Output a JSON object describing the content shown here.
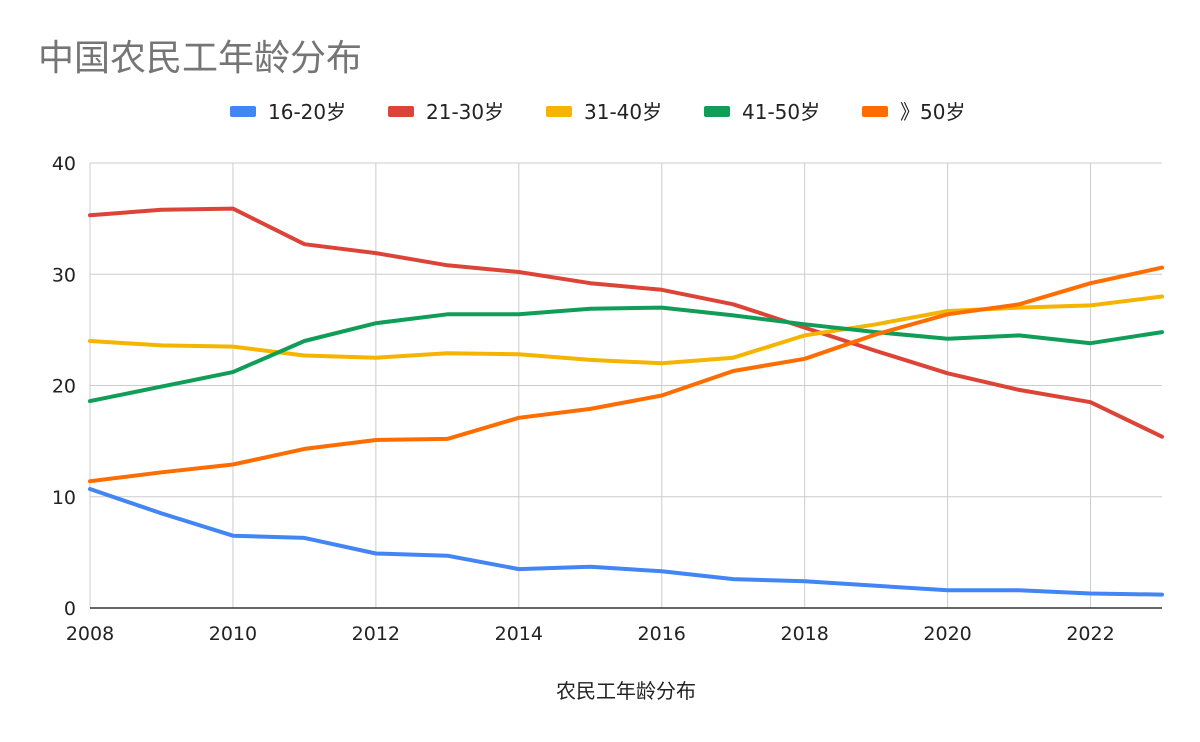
{
  "chart_data": {
    "type": "line",
    "title": "中国农民工年龄分布",
    "xlabel": "农民工年龄分布",
    "ylabel": "",
    "xlim": [
      2008,
      2023
    ],
    "ylim": [
      0,
      40
    ],
    "grid": true,
    "legend_position": "top",
    "x_ticks": [
      "2008",
      "2010",
      "2012",
      "2014",
      "2016",
      "2018",
      "2020",
      "2022"
    ],
    "y_ticks": [
      "0",
      "10",
      "20",
      "30",
      "40"
    ],
    "x": [
      2008,
      2009,
      2010,
      2011,
      2012,
      2013,
      2014,
      2015,
      2016,
      2017,
      2018,
      2019,
      2020,
      2021,
      2022,
      2023
    ],
    "series": [
      {
        "name": "16-20岁",
        "color": "#4285F4",
        "values": [
          10.7,
          8.5,
          6.5,
          6.3,
          4.9,
          4.7,
          3.5,
          3.7,
          3.3,
          2.6,
          2.4,
          2.0,
          1.6,
          1.6,
          1.3,
          1.2
        ]
      },
      {
        "name": "21-30岁",
        "color": "#DB4437",
        "values": [
          35.3,
          35.8,
          35.9,
          32.7,
          31.9,
          30.8,
          30.2,
          29.2,
          28.6,
          27.3,
          25.2,
          23.1,
          21.1,
          19.6,
          18.5,
          15.4
        ]
      },
      {
        "name": "31-40岁",
        "color": "#F4B400",
        "values": [
          24.0,
          23.6,
          23.5,
          22.7,
          22.5,
          22.9,
          22.8,
          22.3,
          22.0,
          22.5,
          24.5,
          25.5,
          26.7,
          27.0,
          27.2,
          28.0
        ]
      },
      {
        "name": "41-50岁",
        "color": "#0F9D58",
        "values": [
          18.6,
          19.9,
          21.2,
          24.0,
          25.6,
          26.4,
          26.4,
          26.9,
          27.0,
          26.3,
          25.5,
          24.8,
          24.2,
          24.5,
          23.8,
          24.8
        ]
      },
      {
        "name": "》50岁",
        "color": "#FF6D00",
        "values": [
          11.4,
          12.2,
          12.9,
          14.3,
          15.1,
          15.2,
          17.1,
          17.9,
          19.1,
          21.3,
          22.4,
          24.6,
          26.4,
          27.3,
          29.2,
          30.6
        ]
      }
    ]
  }
}
